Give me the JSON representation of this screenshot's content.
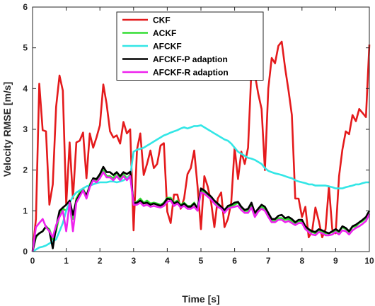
{
  "chart_data": {
    "type": "line",
    "title": "",
    "xlabel": "Time [s]",
    "ylabel": "Velocity RMSE [m/s]",
    "xlim": [
      0,
      10
    ],
    "ylim": [
      0,
      6
    ],
    "xticks": [
      "0",
      "1",
      "2",
      "3",
      "4",
      "5",
      "6",
      "7",
      "8",
      "9",
      "10"
    ],
    "yticks": [
      "0",
      "1",
      "2",
      "3",
      "4",
      "5",
      "6"
    ],
    "grid": false,
    "legend_position": "top-left",
    "series": [
      {
        "name": "CKF",
        "color": "#e41a1c",
        "x": [
          0,
          0.1,
          0.2,
          0.3,
          0.4,
          0.5,
          0.6,
          0.7,
          0.8,
          0.9,
          1.0,
          1.1,
          1.2,
          1.3,
          1.4,
          1.5,
          1.6,
          1.7,
          1.8,
          1.9,
          2.0,
          2.1,
          2.2,
          2.3,
          2.4,
          2.5,
          2.6,
          2.7,
          2.8,
          2.9,
          3.0,
          3.1,
          3.2,
          3.3,
          3.4,
          3.5,
          3.6,
          3.7,
          3.8,
          3.9,
          4.0,
          4.1,
          4.2,
          4.3,
          4.4,
          4.5,
          4.6,
          4.7,
          4.8,
          4.9,
          5.0,
          5.1,
          5.2,
          5.3,
          5.4,
          5.5,
          5.6,
          5.7,
          5.8,
          5.9,
          6.0,
          6.1,
          6.2,
          6.3,
          6.4,
          6.5,
          6.6,
          6.7,
          6.8,
          6.9,
          7.0,
          7.1,
          7.2,
          7.3,
          7.4,
          7.5,
          7.6,
          7.7,
          7.8,
          7.9,
          8.0,
          8.1,
          8.2,
          8.3,
          8.4,
          8.5,
          8.6,
          8.7,
          8.8,
          8.9,
          9.0,
          9.1,
          9.2,
          9.3,
          9.4,
          9.5,
          9.6,
          9.7,
          9.8,
          9.9,
          10.0
        ],
        "values": [
          0,
          0.8,
          4.12,
          2.98,
          2.95,
          1.15,
          1.65,
          3.55,
          4.32,
          3.95,
          1.15,
          2.68,
          1.3,
          2.68,
          2.72,
          2.92,
          1.8,
          2.9,
          2.55,
          2.8,
          3.1,
          4.1,
          3.62,
          2.95,
          2.8,
          2.85,
          2.65,
          3.18,
          2.9,
          3.0,
          0.52,
          2.5,
          2.9,
          1.88,
          2.15,
          2.48,
          2.05,
          2.15,
          2.6,
          2.66,
          0.98,
          0.7,
          1.4,
          1.4,
          1.05,
          1.3,
          1.9,
          2.05,
          2.48,
          1.6,
          0.55,
          1.85,
          1.6,
          1.22,
          0.6,
          1.3,
          1.45,
          0.6,
          0.8,
          1.2,
          2.55,
          1.78,
          2.45,
          2.15,
          2.55,
          4.48,
          4.35,
          3.88,
          3.5,
          2.0,
          4.0,
          4.75,
          4.62,
          5.05,
          5.15,
          4.5,
          3.95,
          3.35,
          1.3,
          1.3,
          0.85,
          1.1,
          0.35,
          0.5,
          1.08,
          0.75,
          0.35,
          0.55,
          1.6,
          0.55,
          0.45,
          1.85,
          2.5,
          2.95,
          2.88,
          3.35,
          3.2,
          3.5,
          3.4,
          3.3,
          5.08
        ]
      },
      {
        "name": "ACKF",
        "color": "#33dd33",
        "x": [
          0,
          0.1,
          0.2,
          0.3,
          0.4,
          0.5,
          0.6,
          0.7,
          0.8,
          0.9,
          1.0,
          1.1,
          1.2,
          1.3,
          1.4,
          1.5,
          1.6,
          1.7,
          1.8,
          1.9,
          2.0,
          2.1,
          2.2,
          2.3,
          2.4,
          2.5,
          2.6,
          2.7,
          2.8,
          2.9,
          3.0,
          3.1,
          3.2,
          3.3,
          3.4,
          3.5,
          3.6,
          3.7,
          3.8,
          3.9,
          4.0,
          4.1,
          4.2,
          4.3,
          4.4,
          4.5,
          4.6,
          4.7,
          4.8,
          4.9,
          5.0,
          5.1,
          5.2,
          5.3,
          5.4,
          5.5,
          5.6,
          5.7,
          5.8,
          5.9,
          6.0,
          6.1,
          6.2,
          6.3,
          6.4,
          6.5,
          6.6,
          6.7,
          6.8,
          6.9,
          7.0,
          7.1,
          7.2,
          7.3,
          7.4,
          7.5,
          7.6,
          7.7,
          7.8,
          7.9,
          8.0,
          8.1,
          8.2,
          8.3,
          8.4,
          8.5,
          8.6,
          8.7,
          8.8,
          8.9,
          9.0,
          9.1,
          9.2,
          9.3,
          9.4,
          9.5,
          9.6,
          9.7,
          9.8,
          9.9,
          10.0
        ],
        "values": [
          0,
          0.35,
          0.45,
          0.5,
          0.6,
          0.55,
          0.3,
          0.5,
          0.9,
          1.05,
          1.0,
          1.2,
          0.8,
          1.3,
          1.45,
          1.55,
          1.35,
          1.65,
          1.8,
          1.75,
          1.85,
          2.0,
          1.85,
          1.85,
          1.8,
          1.95,
          1.8,
          1.9,
          1.8,
          1.88,
          1.2,
          1.22,
          1.3,
          1.2,
          1.25,
          1.18,
          1.2,
          1.18,
          1.15,
          1.2,
          1.32,
          1.32,
          1.2,
          1.25,
          1.15,
          1.2,
          1.12,
          1.12,
          1.2,
          1.05,
          1.5,
          1.45,
          1.4,
          1.32,
          1.22,
          1.15,
          1.08,
          1.0,
          1.1,
          1.12,
          1.15,
          1.2,
          1.08,
          1.0,
          1.0,
          1.15,
          0.9,
          1.02,
          1.1,
          1.05,
          0.9,
          0.75,
          0.75,
          0.82,
          0.82,
          0.78,
          0.8,
          0.75,
          0.7,
          0.75,
          0.75,
          0.6,
          0.52,
          0.48,
          0.45,
          0.52,
          0.5,
          0.45,
          0.45,
          0.48,
          0.52,
          0.48,
          0.6,
          0.55,
          0.48,
          0.6,
          0.62,
          0.7,
          0.75,
          0.82,
          1.0
        ]
      },
      {
        "name": "AFCKF",
        "color": "#33e6e6",
        "x": [
          0,
          0.1,
          0.2,
          0.3,
          0.4,
          0.5,
          0.6,
          0.7,
          0.8,
          0.9,
          1.0,
          1.1,
          1.2,
          1.3,
          1.4,
          1.5,
          1.6,
          1.7,
          1.8,
          1.9,
          2.0,
          2.1,
          2.2,
          2.3,
          2.4,
          2.5,
          2.6,
          2.7,
          2.8,
          2.9,
          3.0,
          3.1,
          3.2,
          3.3,
          3.4,
          3.5,
          3.6,
          3.7,
          3.8,
          3.9,
          4.0,
          4.1,
          4.2,
          4.3,
          4.4,
          4.5,
          4.6,
          4.7,
          4.8,
          4.9,
          5.0,
          5.1,
          5.2,
          5.3,
          5.4,
          5.5,
          5.6,
          5.7,
          5.8,
          5.9,
          6.0,
          6.1,
          6.2,
          6.3,
          6.4,
          6.5,
          6.6,
          6.7,
          6.8,
          6.9,
          7.0,
          7.1,
          7.2,
          7.3,
          7.4,
          7.5,
          7.6,
          7.7,
          7.8,
          7.9,
          8.0,
          8.1,
          8.2,
          8.3,
          8.4,
          8.5,
          8.6,
          8.7,
          8.8,
          8.9,
          9.0,
          9.1,
          9.2,
          9.3,
          9.4,
          9.5,
          9.6,
          9.7,
          9.8,
          9.9,
          10.0
        ],
        "values": [
          0,
          0.05,
          0.1,
          0.12,
          0.15,
          0.2,
          0.25,
          0.3,
          0.5,
          0.7,
          1.0,
          1.2,
          1.35,
          1.45,
          1.5,
          1.55,
          1.6,
          1.62,
          1.65,
          1.68,
          1.7,
          1.7,
          1.7,
          1.72,
          1.72,
          1.7,
          1.72,
          1.75,
          1.8,
          1.85,
          2.45,
          2.5,
          2.52,
          2.55,
          2.6,
          2.65,
          2.7,
          2.75,
          2.8,
          2.85,
          2.88,
          2.92,
          2.95,
          2.98,
          3.02,
          3.05,
          3.02,
          3.05,
          3.08,
          3.08,
          3.1,
          3.05,
          3.0,
          2.95,
          2.9,
          2.85,
          2.8,
          2.75,
          2.72,
          2.65,
          2.55,
          2.45,
          2.4,
          2.35,
          2.3,
          2.28,
          2.25,
          2.2,
          2.15,
          2.05,
          1.98,
          1.95,
          1.92,
          1.9,
          1.88,
          1.85,
          1.82,
          1.8,
          1.75,
          1.72,
          1.7,
          1.68,
          1.65,
          1.65,
          1.62,
          1.62,
          1.62,
          1.62,
          1.6,
          1.58,
          1.55,
          1.55,
          1.55,
          1.58,
          1.6,
          1.62,
          1.65,
          1.65,
          1.68,
          1.7,
          1.7
        ]
      },
      {
        "name": "AFCKF-P adaption",
        "color": "#000000",
        "x": [
          0,
          0.1,
          0.2,
          0.3,
          0.4,
          0.5,
          0.6,
          0.7,
          0.8,
          0.9,
          1.0,
          1.1,
          1.2,
          1.3,
          1.4,
          1.5,
          1.6,
          1.7,
          1.8,
          1.9,
          2.0,
          2.1,
          2.2,
          2.3,
          2.4,
          2.5,
          2.6,
          2.7,
          2.8,
          2.9,
          3.0,
          3.1,
          3.2,
          3.3,
          3.4,
          3.5,
          3.6,
          3.7,
          3.8,
          3.9,
          4.0,
          4.1,
          4.2,
          4.3,
          4.4,
          4.5,
          4.6,
          4.7,
          4.8,
          4.9,
          5.0,
          5.1,
          5.2,
          5.3,
          5.4,
          5.5,
          5.6,
          5.7,
          5.8,
          5.9,
          6.0,
          6.1,
          6.2,
          6.3,
          6.4,
          6.5,
          6.6,
          6.7,
          6.8,
          6.9,
          7.0,
          7.1,
          7.2,
          7.3,
          7.4,
          7.5,
          7.6,
          7.7,
          7.8,
          7.9,
          8.0,
          8.1,
          8.2,
          8.3,
          8.4,
          8.5,
          8.6,
          8.7,
          8.8,
          8.9,
          9.0,
          9.1,
          9.2,
          9.3,
          9.4,
          9.5,
          9.6,
          9.7,
          9.8,
          9.9,
          10.0
        ],
        "values": [
          0,
          0.38,
          0.45,
          0.5,
          0.62,
          0.5,
          0.08,
          0.6,
          1.0,
          1.08,
          1.15,
          1.25,
          0.9,
          1.25,
          1.4,
          1.5,
          1.38,
          1.6,
          1.8,
          1.78,
          1.9,
          2.08,
          1.95,
          1.95,
          1.88,
          1.95,
          1.85,
          1.95,
          1.9,
          1.96,
          1.18,
          1.2,
          1.25,
          1.18,
          1.2,
          1.15,
          1.18,
          1.15,
          1.12,
          1.18,
          1.3,
          1.28,
          1.18,
          1.22,
          1.12,
          1.18,
          1.1,
          1.1,
          1.18,
          1.05,
          1.55,
          1.5,
          1.42,
          1.35,
          1.25,
          1.18,
          1.1,
          1.02,
          1.12,
          1.15,
          1.2,
          1.22,
          1.1,
          1.02,
          1.05,
          1.2,
          0.95,
          1.05,
          1.15,
          1.1,
          0.95,
          0.8,
          0.8,
          0.88,
          0.9,
          0.82,
          0.85,
          0.8,
          0.72,
          0.78,
          0.78,
          0.62,
          0.55,
          0.5,
          0.48,
          0.55,
          0.52,
          0.48,
          0.45,
          0.5,
          0.55,
          0.5,
          0.62,
          0.58,
          0.5,
          0.62,
          0.66,
          0.72,
          0.78,
          0.85,
          1.0
        ]
      },
      {
        "name": "AFCKF-R adaption",
        "color": "#ee22ee",
        "x": [
          0,
          0.1,
          0.2,
          0.3,
          0.4,
          0.5,
          0.6,
          0.7,
          0.8,
          0.9,
          1.0,
          1.1,
          1.2,
          1.3,
          1.4,
          1.5,
          1.6,
          1.7,
          1.8,
          1.9,
          2.0,
          2.1,
          2.2,
          2.3,
          2.4,
          2.5,
          2.6,
          2.7,
          2.8,
          2.9,
          3.0,
          3.1,
          3.2,
          3.3,
          3.4,
          3.5,
          3.6,
          3.7,
          3.8,
          3.9,
          4.0,
          4.1,
          4.2,
          4.3,
          4.4,
          4.5,
          4.6,
          4.7,
          4.8,
          4.9,
          5.0,
          5.1,
          5.2,
          5.3,
          5.4,
          5.5,
          5.6,
          5.7,
          5.8,
          5.9,
          6.0,
          6.1,
          6.2,
          6.3,
          6.4,
          6.5,
          6.6,
          6.7,
          6.8,
          6.9,
          7.0,
          7.1,
          7.2,
          7.3,
          7.4,
          7.5,
          7.6,
          7.7,
          7.8,
          7.9,
          8.0,
          8.1,
          8.2,
          8.3,
          8.4,
          8.5,
          8.6,
          8.7,
          8.8,
          8.9,
          9.0,
          9.1,
          9.2,
          9.3,
          9.4,
          9.5,
          9.6,
          9.7,
          9.8,
          9.9,
          10.0
        ],
        "values": [
          0,
          0.6,
          0.7,
          0.8,
          0.6,
          0.5,
          0.35,
          0.65,
          0.85,
          1.0,
          0.5,
          1.2,
          0.5,
          1.2,
          1.35,
          1.5,
          1.3,
          1.58,
          1.75,
          1.7,
          1.8,
          1.95,
          1.82,
          1.82,
          1.75,
          1.85,
          1.75,
          1.85,
          1.75,
          1.85,
          1.15,
          1.15,
          1.2,
          1.12,
          1.15,
          1.1,
          1.12,
          1.1,
          1.08,
          1.12,
          1.22,
          1.25,
          1.12,
          1.18,
          1.08,
          1.12,
          1.05,
          1.05,
          1.1,
          1.0,
          1.45,
          1.42,
          1.35,
          1.28,
          1.18,
          1.1,
          1.05,
          0.95,
          1.05,
          1.08,
          1.1,
          1.12,
          1.02,
          0.95,
          0.95,
          1.08,
          0.85,
          0.98,
          1.05,
          1.0,
          0.85,
          0.72,
          0.72,
          0.78,
          0.78,
          0.72,
          0.75,
          0.7,
          0.65,
          0.7,
          0.7,
          0.55,
          0.48,
          0.42,
          0.4,
          0.48,
          0.45,
          0.4,
          0.4,
          0.42,
          0.48,
          0.42,
          0.52,
          0.5,
          0.42,
          0.52,
          0.58,
          0.62,
          0.68,
          0.75,
          0.92
        ]
      }
    ]
  }
}
